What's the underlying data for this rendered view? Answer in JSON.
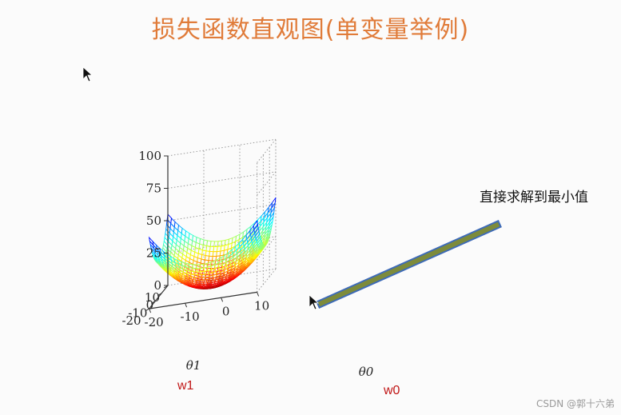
{
  "title": "损失函数直观图(单变量举例)",
  "annotation": "直接求解到最小值",
  "axis_names": {
    "w1": "w1",
    "w0": "w0"
  },
  "watermark": "CSDN @郭十六弟",
  "chart_data": {
    "type": "surface3d",
    "title": "",
    "zlabel": "",
    "xlabel": "θ1",
    "ylabel": "θ0",
    "z_ticks": [
      "0",
      "25",
      "50",
      "75",
      "100"
    ],
    "theta1_ticks": [
      "10",
      "0",
      "-10",
      "-20"
    ],
    "theta0_ticks": [
      "-20",
      "-10",
      "0",
      "10"
    ],
    "theta1_range": [
      -20,
      10
    ],
    "theta0_range": [
      -20,
      10
    ],
    "zlim": [
      0,
      100
    ],
    "grid": true,
    "colormap": "jet",
    "arrow_color": "#7d8b3b",
    "arrow_border": "#3e6bb8"
  }
}
